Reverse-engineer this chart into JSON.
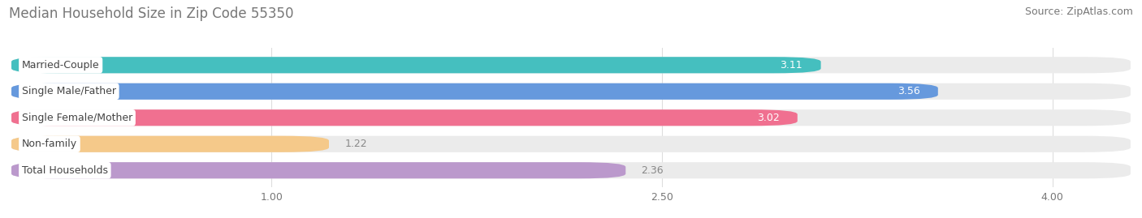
{
  "title": "Median Household Size in Zip Code 55350",
  "source": "Source: ZipAtlas.com",
  "categories": [
    "Married-Couple",
    "Single Male/Father",
    "Single Female/Mother",
    "Non-family",
    "Total Households"
  ],
  "values": [
    3.11,
    3.56,
    3.02,
    1.22,
    2.36
  ],
  "bar_colors": [
    "#45BFBF",
    "#6699DD",
    "#F07090",
    "#F5C98A",
    "#BB99CC"
  ],
  "bar_bg_color": "#EBEBEB",
  "xlim_min": 0.0,
  "xlim_max": 4.3,
  "xticks": [
    1.0,
    2.5,
    4.0
  ],
  "title_fontsize": 12,
  "source_fontsize": 9,
  "label_fontsize": 9,
  "value_fontsize": 9,
  "bar_height": 0.62,
  "bar_gap": 0.38,
  "fig_bg_color": "#FFFFFF",
  "value_inside_threshold": 2.5,
  "label_pill_color": "#FFFFFF",
  "title_color": "#777777",
  "source_color": "#777777",
  "tick_color": "#777777",
  "grid_color": "#DDDDDD",
  "value_color_inside": "#FFFFFF",
  "value_color_outside": "#888888"
}
